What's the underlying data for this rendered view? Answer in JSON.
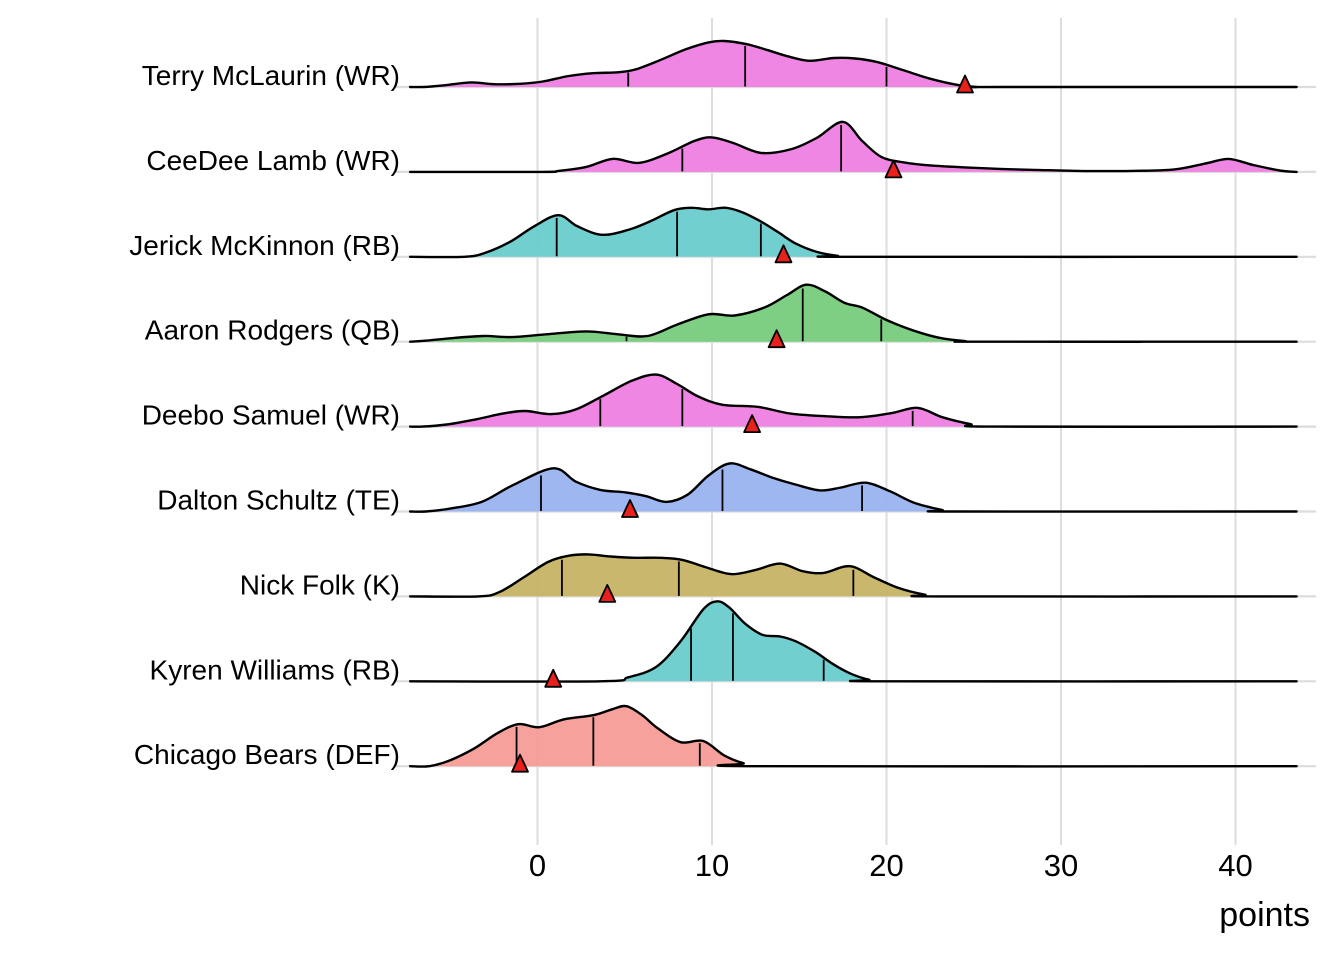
{
  "chart_data": {
    "type": "area",
    "subtype": "ridgeline-density",
    "xlabel": "points",
    "x_ticks": [
      0,
      10,
      20,
      30,
      40
    ],
    "x_range": [
      -7.3,
      43.6
    ],
    "grid": "vertical-only",
    "gridline_color": "#DDDDDD",
    "baseline_color": "#DCDCDC",
    "outline_color": "#000000",
    "marker_color": "#E8211D",
    "marker_shape": "triangle-up",
    "marker_meaning": "actual points",
    "players": [
      {
        "label": "Terry McLaurin (WR)",
        "color": "#EF7FE1",
        "quartiles": [
          5.2,
          11.9,
          20.0
        ],
        "actual": 24.5,
        "peak_height": 46,
        "density": [
          [
            -7.3,
            0
          ],
          [
            -6.5,
            0
          ],
          [
            -5.5,
            0.03
          ],
          [
            -3.8,
            0.1
          ],
          [
            -2.5,
            0.06
          ],
          [
            -1,
            0.07
          ],
          [
            0.3,
            0.12
          ],
          [
            1.8,
            0.24
          ],
          [
            3.2,
            0.3
          ],
          [
            4.6,
            0.32
          ],
          [
            5.6,
            0.38
          ],
          [
            7,
            0.58
          ],
          [
            8.5,
            0.82
          ],
          [
            9.8,
            0.97
          ],
          [
            10.7,
            1.0
          ],
          [
            12,
            0.93
          ],
          [
            13.2,
            0.8
          ],
          [
            14.4,
            0.66
          ],
          [
            15.6,
            0.57
          ],
          [
            17,
            0.63
          ],
          [
            18.2,
            0.62
          ],
          [
            19.5,
            0.54
          ],
          [
            21,
            0.36
          ],
          [
            22.5,
            0.18
          ],
          [
            24,
            0.05
          ],
          [
            25.2,
            0
          ],
          [
            26.5,
            0
          ],
          [
            43.5,
            0
          ]
        ]
      },
      {
        "label": "CeeDee Lamb (WR)",
        "color": "#EF7FE1",
        "quartiles": [
          8.3,
          17.4,
          27.8
        ],
        "actual": 20.4,
        "peak_height": 50,
        "density": [
          [
            -7.3,
            0
          ],
          [
            0.2,
            0
          ],
          [
            1.2,
            0.02
          ],
          [
            2.8,
            0.1
          ],
          [
            4.3,
            0.26
          ],
          [
            5.8,
            0.18
          ],
          [
            7.4,
            0.36
          ],
          [
            9,
            0.62
          ],
          [
            10,
            0.69
          ],
          [
            11.2,
            0.58
          ],
          [
            12.8,
            0.38
          ],
          [
            14.5,
            0.45
          ],
          [
            16,
            0.68
          ],
          [
            17.5,
            1.0
          ],
          [
            18.6,
            0.62
          ],
          [
            19.7,
            0.3
          ],
          [
            21,
            0.19
          ],
          [
            22.5,
            0.13
          ],
          [
            24.5,
            0.09
          ],
          [
            26.5,
            0.06
          ],
          [
            28.5,
            0.04
          ],
          [
            31,
            0.02
          ],
          [
            34,
            0.02
          ],
          [
            36.5,
            0.05
          ],
          [
            38.3,
            0.17
          ],
          [
            39.6,
            0.26
          ],
          [
            41,
            0.14
          ],
          [
            42.5,
            0.03
          ],
          [
            43.5,
            0
          ]
        ]
      },
      {
        "label": "Jerick McKinnon (RB)",
        "color": "#69CCCC",
        "quartiles": [
          1.1,
          8.0,
          12.8
        ],
        "actual": 14.1,
        "peak_height": 49,
        "density": [
          [
            -7.3,
            0
          ],
          [
            -4.2,
            0
          ],
          [
            -3,
            0.08
          ],
          [
            -1.6,
            0.3
          ],
          [
            -0.2,
            0.62
          ],
          [
            1.2,
            0.85
          ],
          [
            2.3,
            0.62
          ],
          [
            3.7,
            0.45
          ],
          [
            5.2,
            0.55
          ],
          [
            6.5,
            0.73
          ],
          [
            7.8,
            0.95
          ],
          [
            8.8,
            1.0
          ],
          [
            9.8,
            0.97
          ],
          [
            10.8,
            1.0
          ],
          [
            11.8,
            0.9
          ],
          [
            12.8,
            0.72
          ],
          [
            13.8,
            0.5
          ],
          [
            14.8,
            0.27
          ],
          [
            16,
            0.1
          ],
          [
            17.2,
            0.02
          ],
          [
            18.2,
            0
          ],
          [
            43.5,
            0
          ]
        ]
      },
      {
        "label": "Aaron Rodgers (QB)",
        "color": "#77CB7C",
        "quartiles": [
          5.1,
          15.2,
          19.7
        ],
        "actual": 13.7,
        "peak_height": 57,
        "density": [
          [
            -7.3,
            0
          ],
          [
            -6.3,
            0.02
          ],
          [
            -5,
            0.06
          ],
          [
            -3.1,
            0.1
          ],
          [
            -1.5,
            0.08
          ],
          [
            0.5,
            0.13
          ],
          [
            2.8,
            0.18
          ],
          [
            4.6,
            0.13
          ],
          [
            6.3,
            0.1
          ],
          [
            8,
            0.3
          ],
          [
            9.8,
            0.48
          ],
          [
            11.3,
            0.46
          ],
          [
            13,
            0.6
          ],
          [
            14.3,
            0.82
          ],
          [
            15.4,
            1.0
          ],
          [
            16.5,
            0.88
          ],
          [
            17.6,
            0.68
          ],
          [
            18.6,
            0.6
          ],
          [
            20,
            0.38
          ],
          [
            21.5,
            0.2
          ],
          [
            23,
            0.07
          ],
          [
            24.5,
            0.01
          ],
          [
            25.5,
            0
          ],
          [
            43.5,
            0
          ]
        ]
      },
      {
        "label": "Deebo Samuel (WR)",
        "color": "#EF7FE1",
        "quartiles": [
          3.6,
          8.3,
          21.5
        ],
        "actual": 12.3,
        "peak_height": 52,
        "density": [
          [
            -7.3,
            0
          ],
          [
            -6.6,
            0
          ],
          [
            -5.2,
            0.04
          ],
          [
            -3.5,
            0.14
          ],
          [
            -2,
            0.25
          ],
          [
            -0.7,
            0.3
          ],
          [
            0.8,
            0.24
          ],
          [
            2.2,
            0.33
          ],
          [
            3.8,
            0.6
          ],
          [
            5.4,
            0.88
          ],
          [
            6.8,
            1.0
          ],
          [
            8,
            0.82
          ],
          [
            9.2,
            0.58
          ],
          [
            10.6,
            0.42
          ],
          [
            12.6,
            0.38
          ],
          [
            14.5,
            0.25
          ],
          [
            16.5,
            0.2
          ],
          [
            18.5,
            0.18
          ],
          [
            20.3,
            0.26
          ],
          [
            21.8,
            0.36
          ],
          [
            23.2,
            0.18
          ],
          [
            24.8,
            0.05
          ],
          [
            26.2,
            0
          ],
          [
            43.5,
            0
          ]
        ]
      },
      {
        "label": "Dalton Schultz (TE)",
        "color": "#99B3F0",
        "quartiles": [
          0.2,
          10.6,
          18.6
        ],
        "actual": 5.3,
        "peak_height": 48,
        "density": [
          [
            -7.3,
            0
          ],
          [
            -6.4,
            0
          ],
          [
            -5,
            0.06
          ],
          [
            -3.2,
            0.2
          ],
          [
            -1.4,
            0.55
          ],
          [
            0.9,
            0.9
          ],
          [
            2.2,
            0.62
          ],
          [
            3.6,
            0.45
          ],
          [
            5,
            0.4
          ],
          [
            6.2,
            0.32
          ],
          [
            7.4,
            0.2
          ],
          [
            8.6,
            0.35
          ],
          [
            9.8,
            0.75
          ],
          [
            11,
            1.0
          ],
          [
            12.2,
            0.88
          ],
          [
            13.5,
            0.7
          ],
          [
            14.8,
            0.56
          ],
          [
            16.2,
            0.44
          ],
          [
            17.4,
            0.5
          ],
          [
            18.8,
            0.6
          ],
          [
            20.2,
            0.42
          ],
          [
            21.6,
            0.18
          ],
          [
            23.2,
            0.03
          ],
          [
            24,
            0
          ],
          [
            43.5,
            0
          ]
        ]
      },
      {
        "label": "Nick Folk (K)",
        "color": "#C6B365",
        "quartiles": [
          1.4,
          8.1,
          18.1
        ],
        "actual": 4.0,
        "peak_height": 42,
        "density": [
          [
            -7.3,
            0
          ],
          [
            -3.4,
            0
          ],
          [
            -2.2,
            0.1
          ],
          [
            -0.8,
            0.45
          ],
          [
            0.6,
            0.82
          ],
          [
            1.8,
            0.97
          ],
          [
            2.9,
            1.0
          ],
          [
            4.2,
            0.95
          ],
          [
            5.6,
            0.92
          ],
          [
            7,
            0.92
          ],
          [
            8.3,
            0.87
          ],
          [
            9.6,
            0.7
          ],
          [
            11.1,
            0.53
          ],
          [
            12.5,
            0.63
          ],
          [
            13.9,
            0.78
          ],
          [
            15.2,
            0.6
          ],
          [
            16.4,
            0.56
          ],
          [
            17.9,
            0.72
          ],
          [
            19.3,
            0.45
          ],
          [
            20.7,
            0.2
          ],
          [
            22.2,
            0.04
          ],
          [
            23.2,
            0
          ],
          [
            43.5,
            0
          ]
        ]
      },
      {
        "label": "Kyren Williams (RB)",
        "color": "#69CCCC",
        "quartiles": [
          8.8,
          11.2,
          16.4
        ],
        "actual": 0.9,
        "peak_height": 80,
        "density": [
          [
            -7.3,
            0
          ],
          [
            3.6,
            0
          ],
          [
            5.2,
            0.05
          ],
          [
            6.8,
            0.18
          ],
          [
            8.2,
            0.5
          ],
          [
            9.5,
            0.9
          ],
          [
            10.3,
            1.0
          ],
          [
            11,
            0.92
          ],
          [
            11.9,
            0.72
          ],
          [
            12.9,
            0.58
          ],
          [
            13.9,
            0.56
          ],
          [
            14.8,
            0.5
          ],
          [
            15.9,
            0.37
          ],
          [
            16.9,
            0.22
          ],
          [
            17.9,
            0.1
          ],
          [
            19,
            0.02
          ],
          [
            19.9,
            0
          ],
          [
            43.5,
            0
          ]
        ]
      },
      {
        "label": "Chicago Bears (DEF)",
        "color": "#F79C98",
        "quartiles": [
          -1.2,
          3.2,
          9.3
        ],
        "actual": -1.0,
        "peak_height": 60,
        "density": [
          [
            -7.3,
            0
          ],
          [
            -6.2,
            0
          ],
          [
            -5,
            0.1
          ],
          [
            -3.6,
            0.3
          ],
          [
            -2.3,
            0.55
          ],
          [
            -1.1,
            0.7
          ],
          [
            0.1,
            0.65
          ],
          [
            1.5,
            0.78
          ],
          [
            3.2,
            0.85
          ],
          [
            4.3,
            0.95
          ],
          [
            5.1,
            1.0
          ],
          [
            6,
            0.85
          ],
          [
            6.9,
            0.63
          ],
          [
            8.2,
            0.4
          ],
          [
            9.5,
            0.42
          ],
          [
            10.7,
            0.18
          ],
          [
            11.8,
            0.05
          ],
          [
            12.9,
            0
          ],
          [
            43.5,
            0
          ]
        ]
      }
    ]
  }
}
